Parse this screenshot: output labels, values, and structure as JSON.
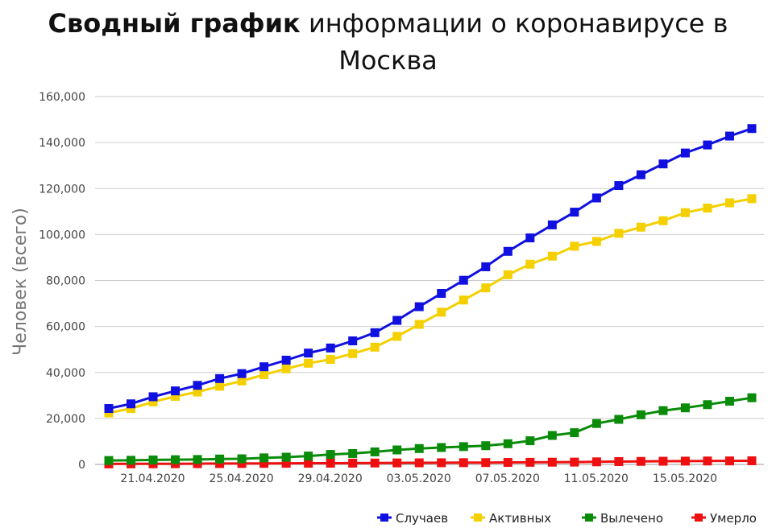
{
  "title": {
    "bold": "Сводный график",
    "line1_rest": " информации о коронавирусе в",
    "line2": "Москва"
  },
  "colors": {
    "cases": "#1010e0",
    "active": "#f5d000",
    "recovered": "#0a8c0a",
    "deaths": "#ee1010",
    "grid": "#cccccc"
  },
  "chart_data": {
    "type": "line",
    "title": "Сводный график информации о коронавирусе в Москва",
    "xlabel": "",
    "ylabel": "Человек (всего)",
    "ylim": [
      0,
      160000
    ],
    "yticks": [
      "0",
      "20,000",
      "40,000",
      "60,000",
      "80,000",
      "100,000",
      "120,000",
      "140,000",
      "160,000"
    ],
    "xtick_labels": [
      "21.04.2020",
      "25.04.2020",
      "29.04.2020",
      "03.05.2020",
      "07.05.2020",
      "11.05.2020",
      "15.05.2020"
    ],
    "xtick_index": [
      1,
      5,
      9,
      13,
      17,
      21,
      25
    ],
    "x": [
      "20.04.2020",
      "21.04.2020",
      "22.04.2020",
      "23.04.2020",
      "24.04.2020",
      "25.04.2020",
      "26.04.2020",
      "27.04.2020",
      "28.04.2020",
      "29.04.2020",
      "30.04.2020",
      "01.05.2020",
      "02.05.2020",
      "03.05.2020",
      "04.05.2020",
      "05.05.2020",
      "06.05.2020",
      "07.05.2020",
      "08.05.2020",
      "09.05.2020",
      "10.05.2020",
      "11.05.2020",
      "12.05.2020",
      "13.05.2020",
      "14.05.2020",
      "15.05.2020",
      "16.05.2020",
      "17.05.2020",
      "18.05.2020",
      "19.05.2020"
    ],
    "grid": true,
    "legend_position": "bottom-right",
    "series": [
      {
        "name": "Случаев",
        "color_key": "cases",
        "values": [
          24324,
          26350,
          29433,
          31981,
          34400,
          37349,
          39509,
          42480,
          45351,
          48426,
          50646,
          53739,
          57300,
          62658,
          68606,
          74401,
          80115,
          85973,
          92676,
          98522,
          104189,
          109740,
          115909,
          121301,
          126004,
          130716,
          135464,
          138969,
          142824,
          146100
        ]
      },
      {
        "name": "Активных",
        "color_key": "active",
        "values": [
          22400,
          24300,
          27200,
          29600,
          31500,
          34000,
          36300,
          39000,
          41600,
          44000,
          45700,
          48200,
          51000,
          55700,
          60900,
          66200,
          71500,
          76800,
          82500,
          87100,
          90600,
          94900,
          97000,
          100500,
          103200,
          106000,
          109500,
          111500,
          113800,
          115600
        ]
      },
      {
        "name": "Вылечено",
        "color_key": "recovered",
        "values": [
          1700,
          1800,
          1950,
          2050,
          2150,
          2350,
          2450,
          2850,
          3150,
          3650,
          4350,
          4750,
          5450,
          6300,
          6900,
          7350,
          7750,
          8150,
          9000,
          10300,
          12600,
          13800,
          17800,
          19600,
          21600,
          23400,
          24600,
          26000,
          27500,
          29000
        ]
      },
      {
        "name": "Умерло",
        "color_key": "deaths",
        "values": [
          204,
          232,
          262,
          296,
          327,
          368,
          400,
          435,
          476,
          509,
          527,
          555,
          611,
          658,
          695,
          727,
          758,
          794,
          866,
          918,
          973,
          1012,
          1124,
          1232,
          1320,
          1385,
          1439,
          1491,
          1532,
          1592
        ]
      }
    ]
  }
}
